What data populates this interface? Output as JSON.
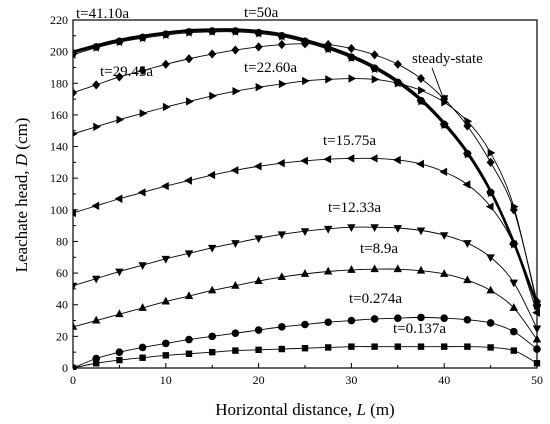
{
  "chart_data": {
    "type": "line",
    "xlabel": "Horizontal distance, L (m)",
    "xlabel_parts": [
      "Horizontal distance, ",
      "L",
      " (m)"
    ],
    "ylabel": "Leachate head, D (cm)",
    "ylabel_parts": [
      "Leachate head, ",
      "D",
      " (cm)"
    ],
    "xlim": [
      0,
      50
    ],
    "ylim": [
      0,
      220
    ],
    "xticks": [
      0,
      10,
      20,
      30,
      40,
      50
    ],
    "yticks": [
      0,
      20,
      40,
      60,
      80,
      100,
      120,
      140,
      160,
      180,
      200,
      220
    ],
    "grid": false,
    "legend": "none",
    "colors": {
      "line": "#000000",
      "background": "#ffffff"
    },
    "series": [
      {
        "name": "t=0.137a",
        "marker": "square",
        "x": [
          0,
          2.5,
          5,
          7.5,
          10,
          12.5,
          15,
          17.5,
          20,
          22.5,
          25,
          27.5,
          30,
          32.5,
          35,
          37.5,
          40,
          42.5,
          45,
          47.5,
          50
        ],
        "y": [
          0,
          3,
          5,
          6.5,
          8,
          9,
          10,
          11,
          11.5,
          12,
          12.5,
          13,
          13.5,
          13.5,
          13.5,
          13.5,
          13.5,
          13.5,
          13,
          11,
          3
        ]
      },
      {
        "name": "t=0.274a",
        "marker": "circle",
        "x": [
          0,
          2.5,
          5,
          7.5,
          10,
          12.5,
          15,
          17.5,
          20,
          22.5,
          25,
          27.5,
          30,
          32.5,
          35,
          37.5,
          40,
          42.5,
          45,
          47.5,
          50
        ],
        "y": [
          0,
          6,
          10,
          13,
          15.5,
          18,
          20,
          22,
          24,
          26,
          27.5,
          29,
          30,
          31,
          31.5,
          32,
          31.5,
          30.5,
          28.5,
          23,
          12
        ]
      },
      {
        "name": "t=8.9a",
        "marker": "triangle-up",
        "x": [
          0,
          2.5,
          5,
          7.5,
          10,
          12.5,
          15,
          17.5,
          20,
          22.5,
          25,
          27.5,
          30,
          32.5,
          35,
          37.5,
          40,
          42.5,
          45,
          47.5,
          50
        ],
        "y": [
          26,
          30,
          34,
          38,
          42,
          45.5,
          49,
          52,
          55,
          57.5,
          59.5,
          61,
          62,
          62.5,
          62.5,
          61.5,
          59.5,
          55.5,
          49,
          38,
          18
        ]
      },
      {
        "name": "t=12.33a",
        "marker": "triangle-down",
        "x": [
          0,
          2.5,
          5,
          7.5,
          10,
          12.5,
          15,
          17.5,
          20,
          22.5,
          25,
          27.5,
          30,
          32.5,
          35,
          37.5,
          40,
          42.5,
          45,
          47.5,
          50
        ],
        "y": [
          52,
          56.5,
          61,
          65,
          69,
          72.5,
          76,
          79,
          82,
          84.5,
          86.5,
          88,
          89,
          89,
          88.5,
          87,
          84,
          79,
          70,
          54,
          25
        ]
      },
      {
        "name": "t=15.75a",
        "marker": "triangle-left",
        "x": [
          0,
          2.5,
          5,
          7.5,
          10,
          12.5,
          15,
          17.5,
          20,
          22.5,
          25,
          27.5,
          30,
          32.5,
          35,
          37.5,
          40,
          42.5,
          45,
          47.5,
          50
        ],
        "y": [
          98,
          102.5,
          107,
          111,
          115,
          118.5,
          122,
          125,
          127.5,
          129.5,
          131,
          132,
          132.5,
          132.5,
          131.5,
          129,
          124,
          116,
          102,
          78,
          35
        ]
      },
      {
        "name": "t=22.60a",
        "marker": "triangle-right",
        "x": [
          0,
          2.5,
          5,
          7.5,
          10,
          12.5,
          15,
          17.5,
          20,
          22.5,
          25,
          27.5,
          30,
          32.5,
          35,
          37.5,
          40,
          42.5,
          45,
          47.5,
          50
        ],
        "y": [
          148,
          152.5,
          157,
          161,
          165,
          168.5,
          172,
          175,
          177.5,
          179.5,
          181.5,
          182.5,
          183,
          182.5,
          180,
          175.5,
          168,
          156,
          136,
          102,
          40
        ]
      },
      {
        "name": "t=29.45a",
        "marker": "diamond",
        "x": [
          0,
          2.5,
          5,
          7.5,
          10,
          12.5,
          15,
          17.5,
          20,
          22.5,
          25,
          27.5,
          30,
          32.5,
          35,
          37.5,
          40,
          42.5,
          45,
          47.5,
          50
        ],
        "y": [
          174,
          179,
          184,
          188,
          192,
          195.5,
          198.5,
          201,
          203,
          204.5,
          205,
          204.5,
          202,
          198,
          192,
          183,
          170,
          153,
          130,
          100,
          42
        ]
      },
      {
        "name": "t=41.10a",
        "marker": "star",
        "x": [
          0,
          2.5,
          5,
          7.5,
          10,
          12.5,
          15,
          17.5,
          20,
          22.5,
          25,
          27.5,
          30,
          32.5,
          35,
          37.5,
          40,
          42.5,
          45,
          47.5,
          50
        ],
        "y": [
          198,
          202.5,
          206,
          208.5,
          210.5,
          212,
          212.5,
          212.5,
          211.5,
          209.5,
          206,
          201.5,
          196,
          189,
          180,
          168.5,
          153.5,
          135,
          110.5,
          78,
          39
        ]
      },
      {
        "name": "t=50a",
        "marker": "circle",
        "x": [
          0,
          2.5,
          5,
          7.5,
          10,
          12.5,
          15,
          17.5,
          20,
          22.5,
          25,
          27.5,
          30,
          32.5,
          35,
          37.5,
          40,
          42.5,
          45,
          47.5,
          50
        ],
        "y": [
          199,
          203,
          206.5,
          209,
          211,
          212.5,
          213,
          213,
          212,
          210,
          206.5,
          202,
          196.5,
          189.5,
          180.5,
          169,
          154,
          135.5,
          111,
          78.5,
          39.5
        ]
      },
      {
        "name": "steady-state",
        "marker": "none",
        "x": [
          0,
          2.5,
          5,
          7.5,
          10,
          12.5,
          15,
          17.5,
          20,
          22.5,
          25,
          27.5,
          30,
          32.5,
          35,
          37.5,
          40,
          42.5,
          45,
          47.5,
          50
        ],
        "y": [
          200,
          204,
          207.5,
          210,
          212,
          213.5,
          214,
          214,
          213,
          211,
          207.5,
          203,
          197.5,
          190.5,
          181.5,
          170,
          155,
          136.5,
          112,
          79.5,
          40
        ]
      }
    ],
    "annotations": [
      {
        "text": "t=41.10a"
      },
      {
        "text": "t=50a"
      },
      {
        "text": "t=29.45a"
      },
      {
        "text": "t=22.60a"
      },
      {
        "text": "steady-state"
      },
      {
        "text": "t=15.75a"
      },
      {
        "text": "t=12.33a"
      },
      {
        "text": "t=8.9a"
      },
      {
        "text": "t=0.274a"
      },
      {
        "text": "t=0.137a"
      }
    ]
  }
}
